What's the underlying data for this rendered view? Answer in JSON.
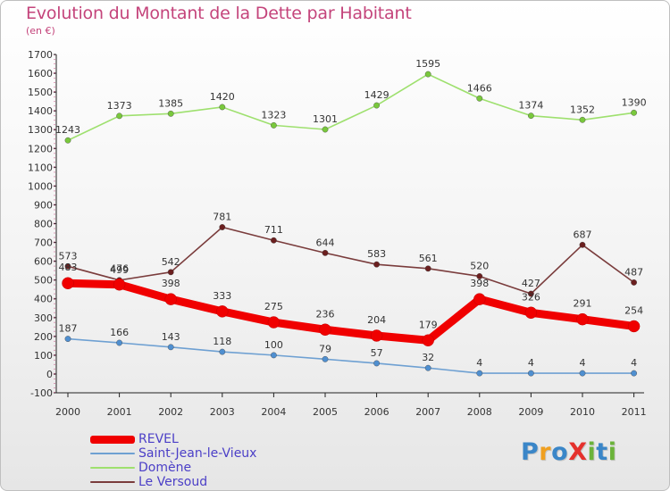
{
  "title": "Evolution du Montant de la Dette par Habitant",
  "subtitle": "(en €)",
  "logo": {
    "text": "ProXiti",
    "colors": [
      "#3a86c8",
      "#f0a020",
      "#3a86c8",
      "#e5312c",
      "#6bb33a",
      "#3a86c8",
      "#6bb33a"
    ]
  },
  "chart_data": {
    "type": "line",
    "x": [
      "2000",
      "2001",
      "2002",
      "2003",
      "2004",
      "2005",
      "2006",
      "2007",
      "2008",
      "2009",
      "2010",
      "2011"
    ],
    "ylim": [
      -100,
      1700
    ],
    "yticks": [
      "-100",
      "0",
      "100",
      "200",
      "300",
      "400",
      "500",
      "600",
      "700",
      "800",
      "900",
      "1000",
      "1100",
      "1200",
      "1300",
      "1400",
      "1500",
      "1600",
      "1700"
    ],
    "grid": false,
    "legend": "bottom-left",
    "series": [
      {
        "name": "REVEL",
        "color": "#f00000",
        "values": [
          483,
          476,
          398,
          333,
          275,
          236,
          204,
          179,
          398,
          326,
          291,
          254
        ],
        "labels": [
          "483",
          "476",
          "398",
          "333",
          "275",
          "236",
          "204",
          "179",
          "398",
          "326",
          "291",
          "254"
        ]
      },
      {
        "name": "Saint-Jean-le-Vieux",
        "color": "#6ea0d2",
        "values": [
          187,
          166,
          143,
          118,
          100,
          79,
          57,
          32,
          4,
          4,
          4,
          4
        ],
        "labels": [
          "187",
          "166",
          "143",
          "118",
          "100",
          "79",
          "57",
          "32",
          "4",
          "4",
          "4",
          "4"
        ]
      },
      {
        "name": "Domène",
        "color": "#9ee06e",
        "values": [
          1243,
          1373,
          1385,
          1420,
          1323,
          1301,
          1429,
          1595,
          1466,
          1374,
          1352,
          1390
        ],
        "labels": [
          "1243",
          "1373",
          "1385",
          "1420",
          "1323",
          "1301",
          "1429",
          "1595",
          "1466",
          "1374",
          "1352",
          "1390"
        ]
      },
      {
        "name": "Le Versoud",
        "color": "#7a3c3c",
        "values": [
          573,
          499,
          542,
          781,
          711,
          644,
          583,
          561,
          520,
          427,
          687,
          487
        ],
        "labels": [
          "573",
          "499",
          "542",
          "781",
          "711",
          "644",
          "583",
          "561",
          "520",
          "427",
          "687",
          "487"
        ]
      }
    ]
  }
}
